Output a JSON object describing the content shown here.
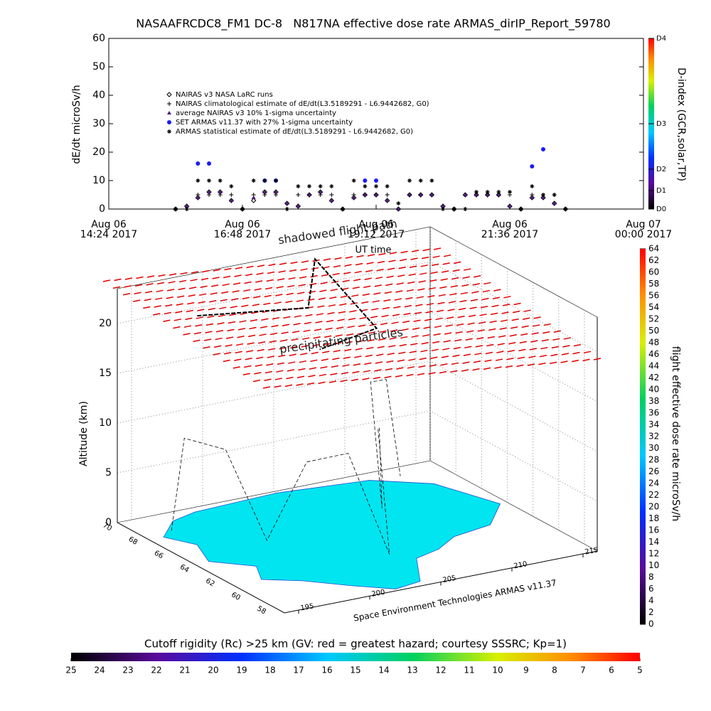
{
  "chart_data": [
    {
      "type": "line",
      "title": "NASAAFRCDC8_FM1 DC-8   N817NA effective dose rate ARMAS_dirIP_Report_59780",
      "x_label": "UT time",
      "y_label": "dE/dt microSv/h",
      "x": [
        "2017-08-06 15:36",
        "2017-08-06 15:48",
        "2017-08-06 16:00",
        "2017-08-06 16:12",
        "2017-08-06 16:24",
        "2017-08-06 16:36",
        "2017-08-06 16:48",
        "2017-08-06 17:00",
        "2017-08-06 17:12",
        "2017-08-06 17:24",
        "2017-08-06 17:36",
        "2017-08-06 17:48",
        "2017-08-06 18:00",
        "2017-08-06 18:12",
        "2017-08-06 18:24",
        "2017-08-06 18:36",
        "2017-08-06 18:48",
        "2017-08-06 19:00",
        "2017-08-06 19:12",
        "2017-08-06 19:24",
        "2017-08-06 19:36",
        "2017-08-06 19:48",
        "2017-08-06 20:00",
        "2017-08-06 20:12",
        "2017-08-06 20:24",
        "2017-08-06 20:36",
        "2017-08-06 20:48",
        "2017-08-06 21:00",
        "2017-08-06 21:12",
        "2017-08-06 21:24",
        "2017-08-06 21:36",
        "2017-08-06 21:48",
        "2017-08-06 22:00",
        "2017-08-06 22:12",
        "2017-08-06 22:24",
        "2017-08-06 22:36"
      ],
      "xlim": [
        "2017-08-06 14:24",
        "2017-08-07 00:00"
      ],
      "xticks": [
        {
          "value": "2017-08-06 14:24",
          "label": "Aug 06\n14:24 2017"
        },
        {
          "value": "2017-08-06 16:48",
          "label": "Aug 06\n16:48 2017"
        },
        {
          "value": "2017-08-06 19:12",
          "label": "Aug 06\n19:12 2017"
        },
        {
          "value": "2017-08-06 21:36",
          "label": "Aug 06\n21:36 2017"
        },
        {
          "value": "2017-08-07 00:00",
          "label": "Aug 07\n00:00 2017"
        }
      ],
      "ylim": [
        0,
        60
      ],
      "yticks": [
        0,
        10,
        20,
        30,
        40,
        50,
        60
      ],
      "series": [
        {
          "name": "NAIRAS v3 NASA LaRC runs",
          "marker": "diamond",
          "color": "#000000",
          "values": [
            0,
            1,
            4,
            6,
            6,
            3,
            0,
            3,
            6,
            6,
            2,
            1,
            5,
            6,
            3,
            0,
            4,
            5,
            5,
            3,
            0,
            5,
            5,
            5,
            1,
            0,
            5,
            5,
            5,
            5,
            1,
            0,
            4,
            4,
            2,
            0
          ]
        },
        {
          "name": "NAIRAS climatological estimate of dE/dt(L3.5189291 - L6.9442682, G0)",
          "marker": "plus",
          "color": "#000000",
          "values": [
            0,
            0,
            5,
            5,
            5,
            5,
            0,
            5,
            5,
            5,
            0,
            5,
            5,
            5,
            5,
            0,
            5,
            5,
            5,
            5,
            0,
            5,
            5,
            5,
            0,
            0,
            0,
            5,
            5,
            5,
            5,
            0,
            5,
            5,
            5,
            0
          ]
        },
        {
          "name": "average NAIRAS v3 10% 1-sigma uncertainty",
          "marker": "triangle",
          "color": "#4b1a7a",
          "values": [
            0,
            1,
            4,
            6,
            6,
            3,
            0,
            4,
            6,
            6,
            2,
            1,
            5,
            6,
            3,
            0,
            4,
            5,
            5,
            3,
            0,
            5,
            5,
            5,
            1,
            0,
            5,
            5,
            5,
            5,
            1,
            0,
            4,
            4,
            2,
            0
          ]
        },
        {
          "name": "SET ARMAS v11.37 with 27% 1-sigma uncertainty",
          "marker": "dot",
          "color": "#1a1aff",
          "values": [
            null,
            null,
            16,
            16,
            null,
            null,
            null,
            null,
            10,
            10,
            null,
            null,
            null,
            null,
            null,
            null,
            null,
            10,
            10,
            null,
            null,
            null,
            null,
            null,
            null,
            null,
            null,
            null,
            null,
            null,
            null,
            null,
            15,
            21,
            null,
            null
          ]
        },
        {
          "name": "ARMAS statistical estimate of dE/dt(L3.5189291 - L6.9442682, G0)",
          "marker": "asterisk",
          "color": "#000000",
          "values": [
            0,
            0,
            10,
            10,
            10,
            8,
            0,
            10,
            10,
            10,
            0,
            8,
            8,
            8,
            8,
            0,
            10,
            8,
            8,
            8,
            2,
            10,
            10,
            10,
            0,
            0,
            0,
            6,
            6,
            6,
            6,
            0,
            8,
            5,
            5,
            0
          ]
        }
      ],
      "colorbar": {
        "label": "D-index (GCR,solar,TP)",
        "ticks": [
          {
            "value": 0,
            "label": "D0"
          },
          {
            "value": 6.5,
            "label": "D1"
          },
          {
            "value": 14,
            "label": "D2"
          },
          {
            "value": 30,
            "label": "D3"
          },
          {
            "value": 60,
            "label": "D4"
          }
        ]
      }
    },
    {
      "type": "flight3d",
      "annotations": [
        "shadowed flight path",
        "precipitating particles"
      ],
      "z_label": "Altitude (km)",
      "credit": "Space Environment Technologies ARMAS v11.37",
      "zlim": [
        0,
        20
      ],
      "zticks": [
        0,
        5,
        10,
        15,
        20
      ],
      "xlim": [
        194,
        216
      ],
      "xticks": [
        195,
        200,
        205,
        210,
        215
      ],
      "ylim": [
        57,
        70
      ],
      "yticks": [
        58,
        60,
        62,
        64,
        66,
        68,
        70
      ],
      "colorbar": {
        "label": "flight effective dose rate microSv/h",
        "lim": [
          0,
          64
        ],
        "ticks": [
          0,
          2,
          4,
          6,
          8,
          10,
          12,
          14,
          16,
          18,
          20,
          22,
          24,
          26,
          28,
          30,
          32,
          34,
          36,
          38,
          40,
          42,
          44,
          46,
          48,
          50,
          52,
          54,
          56,
          58,
          60,
          62,
          64
        ]
      },
      "rigidity_bar": {
        "title": "Cutoff rigidity (Rc) >25 km (GV: red = greatest hazard; courtesy SSSRC; Kp=1)",
        "lim": [
          25,
          5
        ],
        "ticks": [
          25,
          24,
          23,
          22,
          21,
          20,
          19,
          18,
          17,
          16,
          15,
          14,
          13,
          12,
          11,
          10,
          9,
          8,
          7,
          6,
          5
        ]
      }
    }
  ]
}
